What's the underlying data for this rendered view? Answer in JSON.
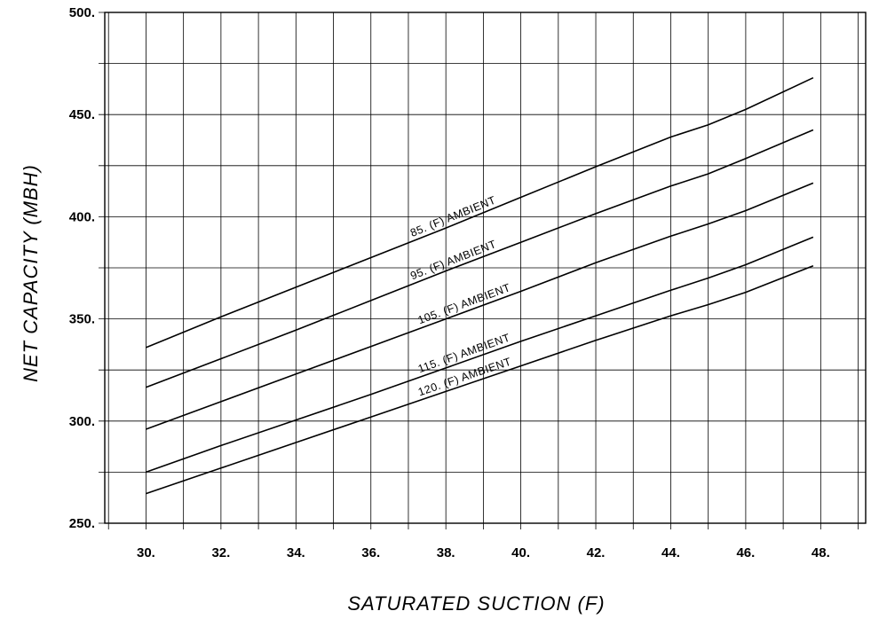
{
  "chart_data": {
    "type": "line",
    "title": "",
    "xlabel": "SATURATED SUCTION (F)",
    "ylabel": "NET CAPACITY (MBH)",
    "xlim": [
      28.9,
      49.2
    ],
    "ylim": [
      250,
      500
    ],
    "x_ticks": [
      30,
      32,
      34,
      36,
      38,
      40,
      42,
      44,
      46,
      48
    ],
    "x_tick_labels": [
      "30.",
      "32.",
      "34.",
      "36.",
      "38.",
      "40.",
      "42.",
      "44.",
      "46.",
      "48."
    ],
    "y_ticks": [
      250,
      300,
      350,
      400,
      450,
      500
    ],
    "y_tick_labels": [
      "250.",
      "300.",
      "350.",
      "400.",
      "450.",
      "500."
    ],
    "grid": true,
    "series": [
      {
        "name": "85. (F) AMBIENT",
        "x": [
          30,
          32,
          34,
          36,
          38,
          40,
          42,
          44,
          45,
          46,
          47.8
        ],
        "values": [
          336,
          351,
          365.5,
          380,
          394.5,
          409.5,
          424.5,
          439,
          445,
          452.5,
          468
        ]
      },
      {
        "name": "95. (F) AMBIENT",
        "x": [
          30,
          32,
          34,
          36,
          38,
          40,
          42,
          44,
          45,
          46,
          47.8
        ],
        "values": [
          316.5,
          330.5,
          344.5,
          359,
          373.5,
          387.5,
          401.5,
          415,
          421,
          428.5,
          442.5
        ]
      },
      {
        "name": "105. (F) AMBIENT",
        "x": [
          30,
          32,
          34,
          36,
          38,
          40,
          42,
          44,
          45,
          46,
          47.8
        ],
        "values": [
          296,
          309.5,
          323,
          336.5,
          350,
          363.5,
          377.5,
          390.5,
          396.5,
          403,
          416.5
        ]
      },
      {
        "name": "115. (F) AMBIENT",
        "x": [
          30,
          32,
          34,
          36,
          38,
          40,
          42,
          44,
          45,
          46,
          47.8
        ],
        "values": [
          275,
          288,
          300.5,
          313,
          326,
          339,
          351.5,
          364,
          370,
          376.5,
          390
        ]
      },
      {
        "name": "120. (F) AMBIENT",
        "x": [
          30,
          32,
          34,
          36,
          38,
          40,
          42,
          44,
          45,
          46,
          47.8
        ],
        "values": [
          264.5,
          277,
          289.5,
          302,
          314.5,
          327,
          339.5,
          351.5,
          357,
          363,
          376
        ]
      }
    ]
  }
}
